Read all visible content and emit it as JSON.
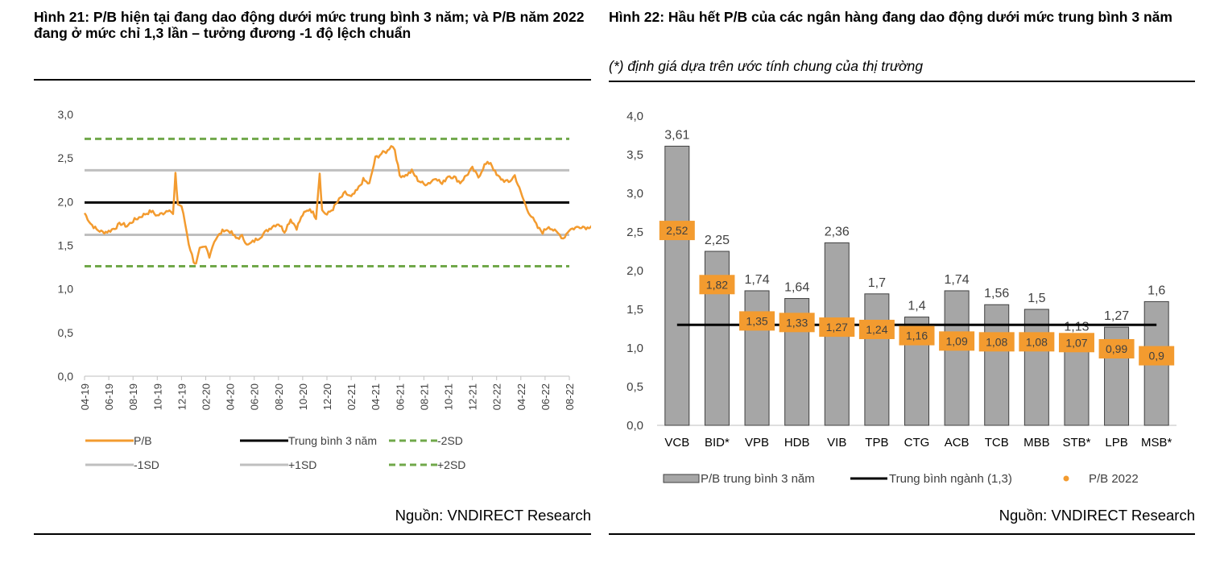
{
  "left": {
    "title": "Hình 21: P/B hiện tại đang dao động dưới mức trung bình 3 năm; và P/B năm 2022 đang ở mức chỉ 1,3 lần – tưởng đương -1 độ lệch chuẩn",
    "source": "Nguồn: VNDIRECT Research"
  },
  "right": {
    "title": "Hình 22: Hầu hết P/B của các ngân hàng đang dao động dưới mức trung bình 3 năm",
    "subtitle": "(*) định giá dựa trên ước tính chung của thị trường",
    "source": "Nguồn: VNDIRECT Research"
  },
  "chart_data": [
    {
      "type": "line",
      "y_ticks": [
        "0,0",
        "0,5",
        "1,0",
        "1,5",
        "2,0",
        "2,5",
        "3,0"
      ],
      "ylim": [
        0,
        3
      ],
      "x_ticks": [
        "04-19",
        "06-19",
        "08-19",
        "10-19",
        "12-19",
        "02-20",
        "04-20",
        "06-20",
        "08-20",
        "10-20",
        "12-20",
        "02-21",
        "04-21",
        "06-21",
        "08-21",
        "10-21",
        "12-21",
        "02-22",
        "04-22",
        "06-22",
        "08-22"
      ],
      "reference_lines": [
        {
          "name": "Trung bình 3 năm",
          "value": 1.99,
          "color": "#000000",
          "style": "solid"
        },
        {
          "name": "-1SD",
          "value": 1.62,
          "color": "#bfbfbf",
          "style": "solid"
        },
        {
          "name": "+1SD",
          "value": 2.36,
          "color": "#bfbfbf",
          "style": "solid"
        },
        {
          "name": "-2SD",
          "value": 1.26,
          "color": "#70a84a",
          "style": "dashed"
        },
        {
          "name": "+2SD",
          "value": 2.72,
          "color": "#70a84a",
          "style": "dashed"
        }
      ],
      "series": [
        {
          "name": "P/B",
          "color": "#f39b2f",
          "anchors": [
            [
              0,
              1.87
            ],
            [
              0.5,
              1.75
            ],
            [
              1,
              1.68
            ],
            [
              1.5,
              1.65
            ],
            [
              2,
              1.66
            ],
            [
              2.5,
              1.7
            ],
            [
              3,
              1.75
            ],
            [
              3.5,
              1.72
            ],
            [
              4,
              1.78
            ],
            [
              4.5,
              1.82
            ],
            [
              5,
              1.86
            ],
            [
              5.5,
              1.89
            ],
            [
              6,
              1.84
            ],
            [
              6.5,
              1.87
            ],
            [
              7,
              1.92
            ],
            [
              7.3,
              1.85
            ],
            [
              7.5,
              2.31
            ],
            [
              7.7,
              1.97
            ],
            [
              8,
              1.95
            ],
            [
              8.3,
              1.75
            ],
            [
              8.6,
              1.52
            ],
            [
              9,
              1.32
            ],
            [
              9.2,
              1.28
            ],
            [
              9.5,
              1.45
            ],
            [
              10,
              1.48
            ],
            [
              10.3,
              1.38
            ],
            [
              10.7,
              1.55
            ],
            [
              11,
              1.6
            ],
            [
              11.5,
              1.68
            ],
            [
              12,
              1.66
            ],
            [
              12.5,
              1.58
            ],
            [
              13,
              1.6
            ],
            [
              13.5,
              1.5
            ],
            [
              14,
              1.55
            ],
            [
              14.5,
              1.6
            ],
            [
              15,
              1.66
            ],
            [
              15.5,
              1.72
            ],
            [
              16,
              1.75
            ],
            [
              16.5,
              1.66
            ],
            [
              17,
              1.8
            ],
            [
              17.5,
              1.7
            ],
            [
              18,
              1.85
            ],
            [
              18.6,
              1.92
            ],
            [
              19.1,
              1.82
            ],
            [
              19.4,
              2.33
            ],
            [
              19.6,
              1.9
            ],
            [
              20,
              1.85
            ],
            [
              20.5,
              1.92
            ],
            [
              21,
              2.02
            ],
            [
              21.5,
              2.1
            ],
            [
              22,
              2.05
            ],
            [
              22.5,
              2.13
            ],
            [
              23,
              2.25
            ],
            [
              23.5,
              2.2
            ],
            [
              24,
              2.5
            ],
            [
              24.5,
              2.55
            ],
            [
              25,
              2.58
            ],
            [
              25.3,
              2.65
            ],
            [
              25.6,
              2.6
            ],
            [
              26,
              2.3
            ],
            [
              26.5,
              2.3
            ],
            [
              27,
              2.35
            ],
            [
              27.5,
              2.25
            ],
            [
              28,
              2.2
            ],
            [
              28.5,
              2.22
            ],
            [
              29,
              2.28
            ],
            [
              29.5,
              2.2
            ],
            [
              30,
              2.3
            ],
            [
              30.5,
              2.28
            ],
            [
              31,
              2.22
            ],
            [
              31.5,
              2.3
            ],
            [
              32,
              2.38
            ],
            [
              32.5,
              2.28
            ],
            [
              33,
              2.42
            ],
            [
              33.5,
              2.45
            ],
            [
              34,
              2.3
            ],
            [
              34.5,
              2.25
            ],
            [
              35,
              2.22
            ],
            [
              35.5,
              2.3
            ],
            [
              36,
              2.1
            ],
            [
              36.5,
              1.92
            ],
            [
              37,
              1.8
            ],
            [
              37.4,
              1.7
            ],
            [
              37.8,
              1.65
            ],
            [
              38.3,
              1.72
            ],
            [
              38.8,
              1.66
            ],
            [
              39.2,
              1.62
            ],
            [
              39.5,
              1.58
            ],
            [
              40,
              1.68
            ],
            [
              40.5,
              1.7
            ],
            [
              41,
              1.72
            ],
            [
              41.5,
              1.7
            ],
            [
              42,
              1.75
            ],
            [
              42.5,
              1.74
            ],
            [
              43,
              1.72
            ],
            [
              43.3,
              1.65
            ]
          ]
        }
      ],
      "legend": [
        "P/B",
        "Trung bình 3 năm",
        "-2SD",
        "-1SD",
        "+1SD",
        "+2SD"
      ]
    },
    {
      "type": "bar",
      "categories": [
        "VCB",
        "BID*",
        "VPB",
        "HDB",
        "VIB",
        "TPB",
        "CTG",
        "ACB",
        "TCB",
        "MBB",
        "STB*",
        "LPB",
        "MSB*"
      ],
      "series": [
        {
          "name": "P/B trung bình 3 năm",
          "color": "#a6a6a6",
          "values": [
            3.61,
            2.25,
            1.74,
            1.64,
            2.36,
            1.7,
            1.4,
            1.74,
            1.56,
            1.5,
            1.13,
            1.27,
            1.6
          ],
          "labels": [
            "3,61",
            "2,25",
            "1,74",
            "1,64",
            "2,36",
            "1,7",
            "1,4",
            "1,74",
            "1,56",
            "1,5",
            "1,13",
            "1,27",
            "1,6"
          ]
        },
        {
          "name": "P/B 2022",
          "color": "#f39b2f",
          "values": [
            2.52,
            1.82,
            1.35,
            1.33,
            1.27,
            1.24,
            1.16,
            1.09,
            1.08,
            1.08,
            1.07,
            0.99,
            0.9
          ],
          "labels": [
            "2,52",
            "1,82",
            "1,35",
            "1,33",
            "1,27",
            "1,24",
            "1,16",
            "1,09",
            "1,08",
            "1,08",
            "1,07",
            "0,99",
            "0,9"
          ]
        }
      ],
      "reference_line": {
        "name": "Trung bình ngành (1,3)",
        "value": 1.3,
        "color": "#000000"
      },
      "y_ticks": [
        "0,0",
        "0,5",
        "1,0",
        "1,5",
        "2,0",
        "2,5",
        "3,0",
        "3,5",
        "4,0"
      ],
      "ylim": [
        0,
        4
      ],
      "legend": [
        "P/B trung bình 3 năm",
        "Trung bình ngành (1,3)",
        "P/B 2022"
      ]
    }
  ]
}
